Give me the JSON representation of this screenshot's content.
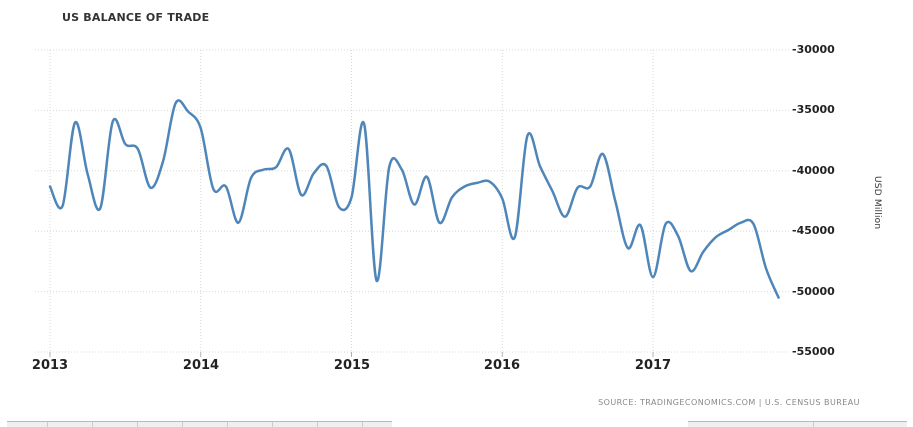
{
  "title": "US BALANCE OF TRADE",
  "source_text": "SOURCE: TRADINGECONOMICS.COM | U.S. CENSUS BUREAU",
  "colors": {
    "line": "#4f86ba",
    "grid": "#d8d8d8",
    "axis_tick": "#b0b0b0",
    "title_text": "#333333",
    "tick_text": "#222222",
    "source_text": "#888888"
  },
  "chart_data": {
    "type": "line",
    "title": "US BALANCE OF TRADE",
    "xlabel": "",
    "ylabel": "USD Million",
    "series_name": "US Balance of Trade",
    "frequency": "monthly",
    "start_month": "2013-01",
    "end_month": "2017-11",
    "x_tick_labels": [
      "2013",
      "2014",
      "2015",
      "2016",
      "2017"
    ],
    "y_tick_labels": [
      "-30000",
      "-35000",
      "-40000",
      "-45000",
      "-50000",
      "-55000"
    ],
    "ylim": [
      -55000,
      -30000
    ],
    "grid": "dotted",
    "legend": "none",
    "smoothing": "spline",
    "values_usd_million": [
      -41300,
      -42900,
      -36000,
      -40300,
      -43100,
      -35900,
      -37800,
      -38200,
      -41400,
      -39200,
      -34400,
      -35100,
      -36500,
      -41500,
      -41300,
      -44300,
      -40600,
      -39900,
      -39700,
      -38200,
      -42000,
      -40200,
      -39600,
      -43000,
      -42200,
      -36100,
      -49100,
      -39700,
      -39900,
      -42800,
      -40500,
      -44300,
      -42200,
      -41300,
      -41000,
      -40900,
      -42300,
      -45500,
      -37100,
      -39600,
      -41700,
      -43800,
      -41400,
      -41300,
      -38600,
      -42500,
      -46400,
      -44500,
      -48800,
      -44400,
      -45400,
      -48300,
      -46700,
      -45500,
      -44900,
      -44300,
      -44400,
      -48100,
      -50500
    ]
  }
}
